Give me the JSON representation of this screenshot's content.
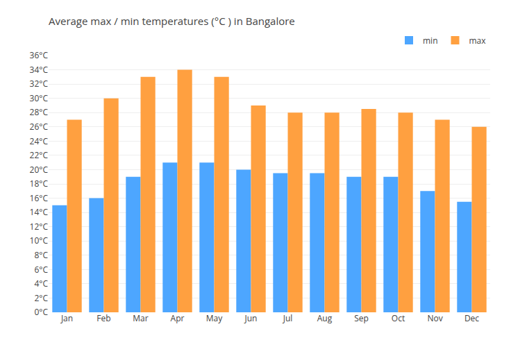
{
  "chart_data": {
    "type": "bar",
    "title": "Average max / min temperatures (°C ) in Bangalore",
    "categories": [
      "Jan",
      "Feb",
      "Mar",
      "Apr",
      "May",
      "Jun",
      "Jul",
      "Aug",
      "Sep",
      "Oct",
      "Nov",
      "Dec"
    ],
    "series": [
      {
        "name": "min",
        "color": "#4da6ff",
        "values": [
          15,
          16,
          19,
          21,
          21,
          20,
          19.5,
          19.5,
          19,
          19,
          17,
          15.5
        ]
      },
      {
        "name": "max",
        "color": "#ffa040",
        "values": [
          27,
          30,
          33,
          34,
          33,
          29,
          28,
          28,
          28.5,
          28,
          27,
          26
        ]
      }
    ],
    "ylim": [
      0,
      36
    ],
    "yticks": [
      {
        "value": 0,
        "label": "0°C"
      },
      {
        "value": 2,
        "label": "2°C"
      },
      {
        "value": 4,
        "label": "4°C"
      },
      {
        "value": 6,
        "label": "6°C"
      },
      {
        "value": 8,
        "label": "8°C"
      },
      {
        "value": 10,
        "label": "10°C"
      },
      {
        "value": 12,
        "label": "12°C"
      },
      {
        "value": 14,
        "label": "14°C"
      },
      {
        "value": 16,
        "label": "16°C"
      },
      {
        "value": 18,
        "label": "18°C"
      },
      {
        "value": 20,
        "label": "20°C"
      },
      {
        "value": 22,
        "label": "22°C"
      },
      {
        "value": 24,
        "label": "24°C"
      },
      {
        "value": 26,
        "label": "26°C"
      },
      {
        "value": 28,
        "label": "28°C"
      },
      {
        "value": 30,
        "label": "30°C"
      },
      {
        "value": 32,
        "label": "32°C"
      },
      {
        "value": 34,
        "label": "34°C"
      },
      {
        "value": 36,
        "label": "36°C"
      }
    ],
    "grid": true,
    "legend": "upper right"
  }
}
